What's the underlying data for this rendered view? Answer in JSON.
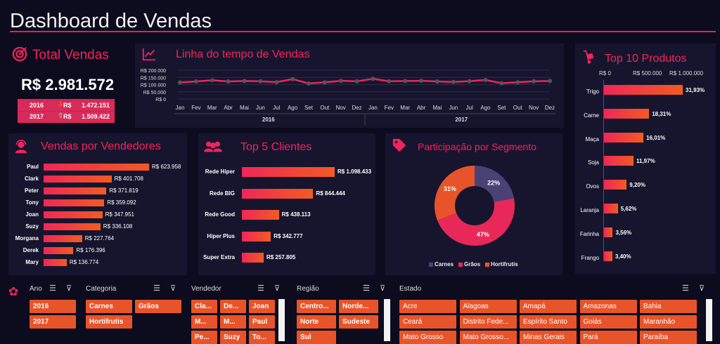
{
  "title": "Dashboard de Vendas",
  "total": {
    "title": "Total Vendas",
    "value": "R$ 2.981.572",
    "rows": [
      {
        "year": "2016",
        "trend": "down",
        "currency": "R$",
        "value": "1.472.151"
      },
      {
        "year": "2017",
        "trend": "up",
        "currency": "R$",
        "value": "1.509.422"
      }
    ]
  },
  "timeline": {
    "title": "Linha do tempo de Vendas",
    "yticks": [
      "R$ 200.000",
      "R$ 150.000",
      "R$ 100.000",
      "R$ 50.000",
      "R$ 0"
    ],
    "months": [
      "Jan",
      "Fev",
      "Mar",
      "Abr",
      "Mai",
      "Jun",
      "Jul",
      "Ago",
      "Set",
      "Out",
      "Nov",
      "Dez",
      "Jan",
      "Fev",
      "Mar",
      "Abr",
      "Mai",
      "Jun",
      "Jul",
      "Ago",
      "Set",
      "Out",
      "Nov",
      "Dez"
    ],
    "years": [
      "2016",
      "2017"
    ],
    "values": [
      115000,
      122000,
      130000,
      122000,
      125000,
      123000,
      117000,
      138000,
      108000,
      116000,
      126000,
      123000,
      140000,
      123000,
      125000,
      126000,
      122000,
      118000,
      124000,
      132000,
      110000,
      116000,
      123000,
      125000
    ]
  },
  "vendedores": {
    "title": "Vendas por Vendedores",
    "items": [
      {
        "name": "Paul",
        "label": "R$ 623.958",
        "value": 623958
      },
      {
        "name": "Clark",
        "label": "R$ 401.708",
        "value": 401708
      },
      {
        "name": "Peter",
        "label": "R$ 371.819",
        "value": 371819
      },
      {
        "name": "Tony",
        "label": "R$ 359.092",
        "value": 359092
      },
      {
        "name": "Joan",
        "label": "R$ 347.951",
        "value": 347951
      },
      {
        "name": "Suzy",
        "label": "R$ 336.108",
        "value": 336108
      },
      {
        "name": "Morgana",
        "label": "R$ 227.764",
        "value": 227764
      },
      {
        "name": "Derek",
        "label": "R$ 176.396",
        "value": 176396
      },
      {
        "name": "Mary",
        "label": "R$ 136.774",
        "value": 136774
      }
    ]
  },
  "clientes": {
    "title": "Top 5 Clientes",
    "items": [
      {
        "name": "Rede Hiper",
        "label": "R$ 1.098.433",
        "value": 1098433
      },
      {
        "name": "Rede BIG",
        "label": "R$ 844.444",
        "value": 844444
      },
      {
        "name": "Rede Good",
        "label": "R$ 438.113",
        "value": 438113
      },
      {
        "name": "Hiper Plus",
        "label": "R$ 342.777",
        "value": 342777
      },
      {
        "name": "Super Extra",
        "label": "R$ 257.805",
        "value": 257805
      }
    ]
  },
  "segmento": {
    "title": "Participação por Segmento",
    "slices": [
      {
        "name": "Carnes",
        "pct": 22,
        "label": "22%",
        "color": "#4a4275"
      },
      {
        "name": "Grãos",
        "pct": 47,
        "label": "47%",
        "color": "#e9285a"
      },
      {
        "name": "Hortifrutis",
        "pct": 31,
        "label": "31%",
        "color": "#e8542a"
      }
    ]
  },
  "produtos": {
    "title": "Top 10 Produtos",
    "axis": [
      "R$ 0",
      "R$ 500.000",
      "R$ 1.000.000"
    ],
    "items": [
      {
        "name": "Trigo",
        "label": "31,93%",
        "value": 31.93
      },
      {
        "name": "Carne",
        "label": "18,31%",
        "value": 18.31
      },
      {
        "name": "Maça",
        "label": "16,01%",
        "value": 16.01
      },
      {
        "name": "Soja",
        "label": "11,97%",
        "value": 11.97
      },
      {
        "name": "Ovos",
        "label": "9,20%",
        "value": 9.2
      },
      {
        "name": "Laranja",
        "label": "5,62%",
        "value": 5.62
      },
      {
        "name": "Farinha",
        "label": "3,56%",
        "value": 3.56
      },
      {
        "name": "Frango",
        "label": "3,40%",
        "value": 3.4
      }
    ]
  },
  "slicers": {
    "ano": {
      "title": "Ano",
      "items": [
        "2016",
        "2017"
      ]
    },
    "categoria": {
      "title": "Categoria",
      "items": [
        "Carnes",
        "Grãos",
        "Hortifrutis"
      ]
    },
    "vendedor": {
      "title": "Vendedor",
      "items": [
        "Cla...",
        "De...",
        "Joan",
        "M...",
        "M...",
        "Paul",
        "Pe...",
        "Suzy",
        "To..."
      ]
    },
    "regiao": {
      "title": "Região",
      "items": [
        "Centro...",
        "Norde...",
        "Norte",
        "Sudeste",
        "Sul"
      ]
    },
    "estado": {
      "title": "Estado",
      "items": [
        "Acre",
        "Alagoas",
        "Amapá",
        "Amazonas",
        "Bahia",
        "Ceará",
        "Distrito Fede...",
        "Espírito Santo",
        "Goiás",
        "Maranhão",
        "Mato Grosso",
        "Mato Grosso...",
        "Minas Gerais",
        "Pará",
        "Paraíba"
      ]
    }
  },
  "colors": {
    "accent": "#f0245e",
    "bar_start": "#ef2757",
    "bar_end": "#f25b22",
    "bg": "#0d0b1e",
    "panel": "#17152e"
  }
}
